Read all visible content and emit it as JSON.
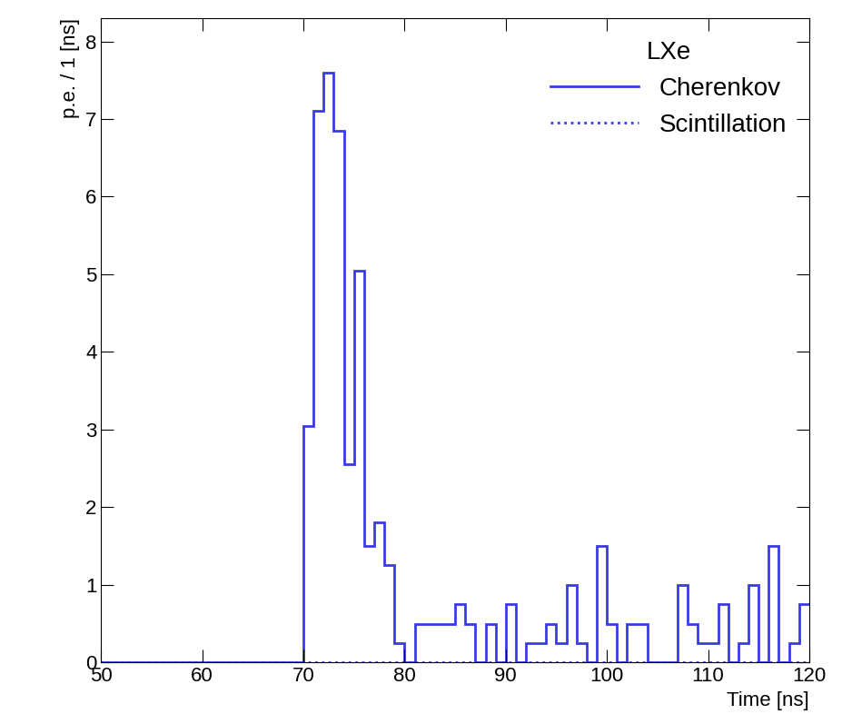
{
  "chart_data": {
    "type": "histogram",
    "title": "LXe",
    "x_label": "Time [ns]",
    "y_label": "p.e. / 1 [ns]",
    "bins": [
      50,
      51,
      52,
      53,
      54,
      55,
      56,
      57,
      58,
      59,
      60,
      61,
      62,
      63,
      64,
      65,
      66,
      67,
      68,
      69,
      70,
      71,
      72,
      73,
      74,
      75,
      76,
      77,
      78,
      79,
      80,
      81,
      82,
      83,
      84,
      85,
      86,
      87,
      88,
      89,
      90,
      91,
      92,
      93,
      94,
      95,
      96,
      97,
      98,
      99,
      100,
      101,
      102,
      103,
      104,
      105,
      106,
      107,
      108,
      109,
      110,
      111,
      112,
      113,
      114,
      115,
      116,
      117,
      118,
      119,
      120
    ],
    "series": [
      {
        "name": "Cherenkov",
        "color": "#3a3ae6",
        "line_style": "solid",
        "values": [
          0,
          0,
          0,
          0,
          0,
          0,
          0,
          0,
          0,
          0,
          0,
          0,
          0,
          0,
          0,
          0,
          0,
          0,
          0,
          0,
          3.05,
          7.1,
          7.6,
          6.85,
          2.55,
          5.05,
          1.5,
          1.8,
          1.25,
          0.25,
          0,
          0.5,
          0.5,
          0.5,
          0.5,
          0.75,
          0.5,
          0,
          0.5,
          0,
          0.75,
          0,
          0.25,
          0.25,
          0.5,
          0.25,
          1.0,
          0.25,
          0,
          1.5,
          0.5,
          0,
          0.5,
          0.5,
          0,
          0,
          0,
          1.0,
          0.5,
          0.25,
          0.25,
          0.75,
          0,
          0.25,
          1.0,
          0,
          1.5,
          0,
          0.25,
          0.75
        ]
      },
      {
        "name": "Scintillation",
        "color": "#3a3ae6",
        "line_style": "dotted",
        "values": [
          0,
          0,
          0,
          0,
          0,
          0,
          0,
          0,
          0,
          0,
          0,
          0,
          0,
          0,
          0,
          0,
          0,
          0,
          0,
          0,
          0,
          0,
          0,
          0,
          0,
          0,
          0,
          0,
          0,
          0,
          0,
          0,
          0,
          0,
          0,
          0,
          0,
          0,
          0,
          0,
          0,
          0,
          0,
          0,
          0,
          0,
          0,
          0,
          0,
          0,
          0,
          0,
          0,
          0,
          0,
          0,
          0,
          0,
          0,
          0,
          0,
          0,
          0,
          0,
          0,
          0,
          0,
          0,
          0,
          0
        ]
      }
    ],
    "xlim": [
      50,
      120
    ],
    "xticks": [
      50,
      60,
      70,
      80,
      90,
      100,
      110,
      120
    ],
    "ylim": [
      0,
      8.3
    ],
    "yticks": [
      0,
      1,
      2,
      3,
      4,
      5,
      6,
      7,
      8
    ],
    "legend": "upper right",
    "grid": false
  }
}
